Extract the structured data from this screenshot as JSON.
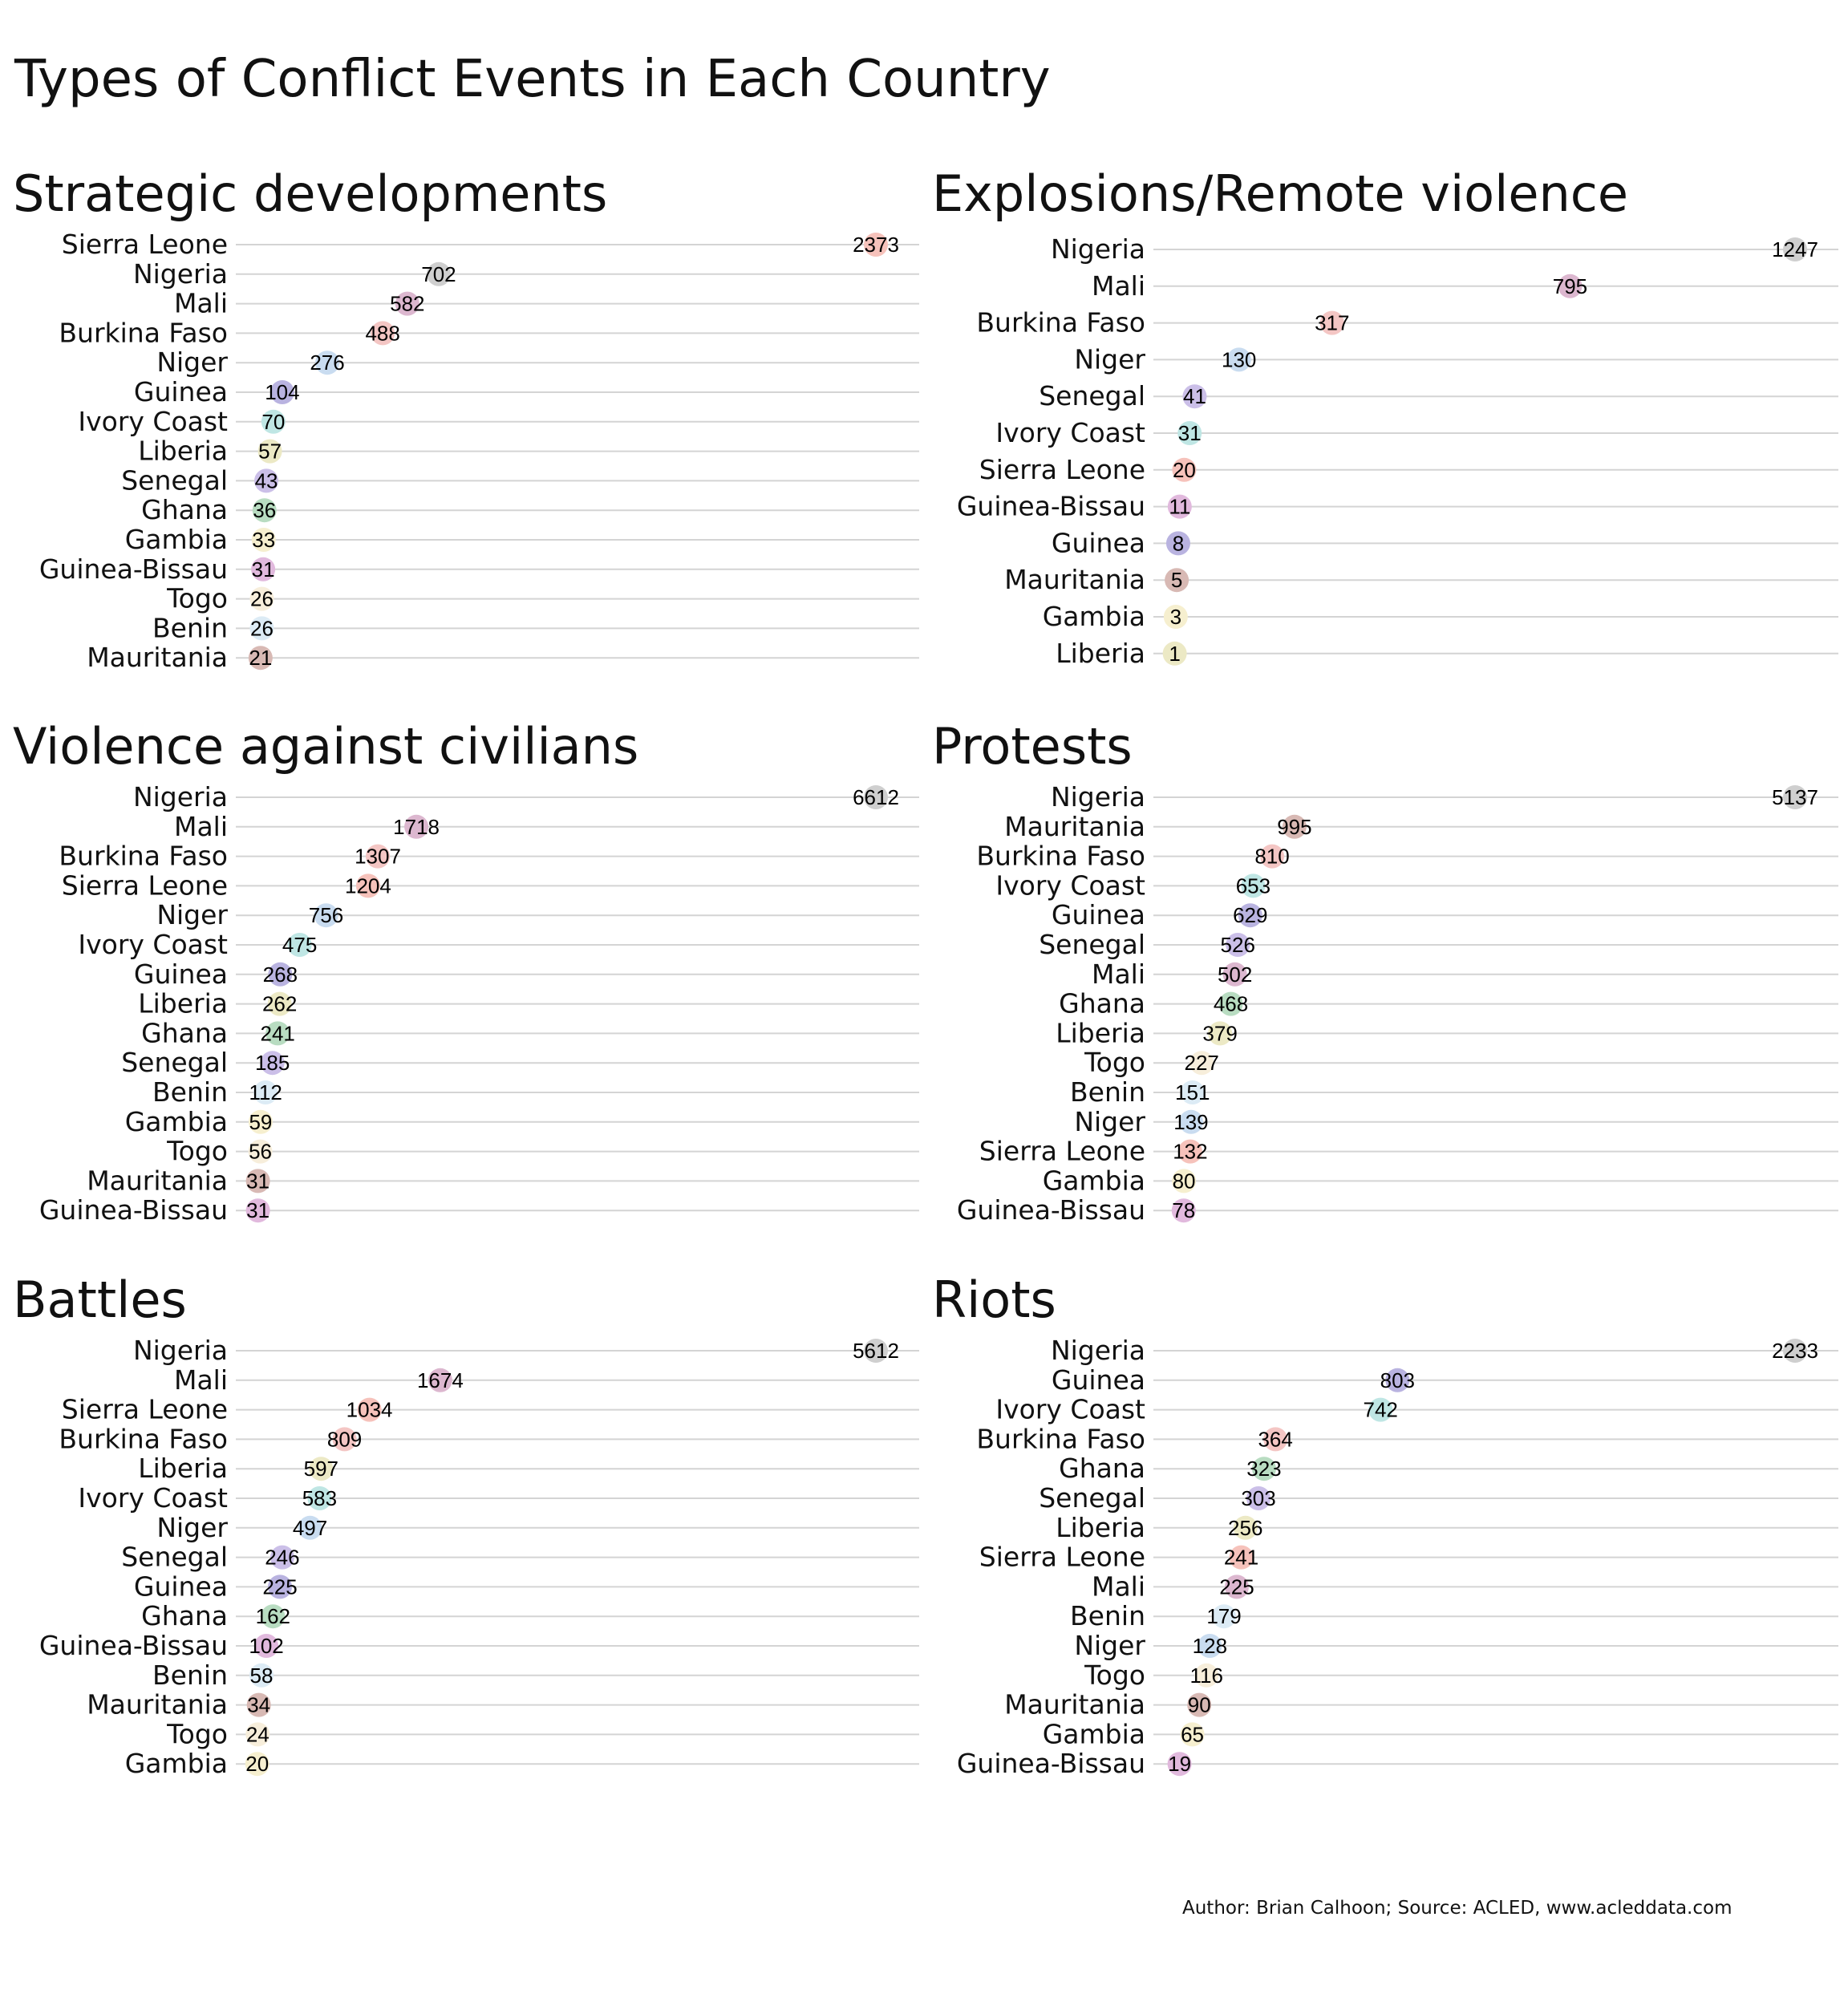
{
  "title": "Types of Conflict Events in Each Country",
  "caption": "Author: Brian Calhoon; Source: ACLED, www.acleddata.com",
  "country_colors": {
    "Sierra Leone": "#f6c2bb",
    "Nigeria": "#cfcfcf",
    "Mali": "#dcb7cf",
    "Burkina Faso": "#f4c6c4",
    "Niger": "#c9dcf0",
    "Guinea": "#b9b3e0",
    "Ivory Coast": "#bfe6e4",
    "Liberia": "#ece9c5",
    "Senegal": "#cbbfe8",
    "Ghana": "#b8dcc1",
    "Gambia": "#f6efcf",
    "Guinea-Bissau": "#e1b9dd",
    "Togo": "#f7eedb",
    "Benin": "#dcebf5",
    "Mauritania": "#d8b9b4"
  },
  "chart_data": [
    {
      "type": "scatter",
      "title": "Strategic developments",
      "categories": [
        "Sierra Leone",
        "Nigeria",
        "Mali",
        "Burkina Faso",
        "Niger",
        "Guinea",
        "Ivory Coast",
        "Liberia",
        "Senegal",
        "Ghana",
        "Gambia",
        "Guinea-Bissau",
        "Togo",
        "Benin",
        "Mauritania"
      ],
      "values": [
        2373,
        702,
        582,
        488,
        276,
        104,
        70,
        57,
        43,
        36,
        33,
        31,
        26,
        26,
        21
      ],
      "xlim": [
        0,
        2373
      ],
      "grid": true,
      "legend": "none"
    },
    {
      "type": "scatter",
      "title": "Explosions/Remote violence",
      "categories": [
        "Nigeria",
        "Mali",
        "Burkina Faso",
        "Niger",
        "Senegal",
        "Ivory Coast",
        "Sierra Leone",
        "Guinea-Bissau",
        "Guinea",
        "Mauritania",
        "Gambia",
        "Liberia"
      ],
      "values": [
        1247,
        795,
        317,
        130,
        41,
        31,
        20,
        11,
        8,
        5,
        3,
        1
      ],
      "xlim": [
        0,
        1247
      ],
      "grid": true,
      "legend": "none"
    },
    {
      "type": "scatter",
      "title": "Violence against civilians",
      "categories": [
        "Nigeria",
        "Mali",
        "Burkina Faso",
        "Sierra Leone",
        "Niger",
        "Ivory Coast",
        "Guinea",
        "Liberia",
        "Ghana",
        "Senegal",
        "Benin",
        "Gambia",
        "Togo",
        "Mauritania",
        "Guinea-Bissau"
      ],
      "values": [
        6612,
        1718,
        1307,
        1204,
        756,
        475,
        268,
        262,
        241,
        185,
        112,
        59,
        56,
        31,
        31
      ],
      "xlim": [
        0,
        6612
      ],
      "grid": true,
      "legend": "none"
    },
    {
      "type": "scatter",
      "title": "Protests",
      "categories": [
        "Nigeria",
        "Mauritania",
        "Burkina Faso",
        "Ivory Coast",
        "Guinea",
        "Senegal",
        "Mali",
        "Ghana",
        "Liberia",
        "Togo",
        "Benin",
        "Niger",
        "Sierra Leone",
        "Gambia",
        "Guinea-Bissau"
      ],
      "values": [
        5137,
        995,
        810,
        653,
        629,
        526,
        502,
        468,
        379,
        227,
        151,
        139,
        132,
        80,
        78
      ],
      "xlim": [
        0,
        5137
      ],
      "grid": true,
      "legend": "none"
    },
    {
      "type": "scatter",
      "title": "Battles",
      "categories": [
        "Nigeria",
        "Mali",
        "Sierra Leone",
        "Burkina Faso",
        "Liberia",
        "Ivory Coast",
        "Niger",
        "Senegal",
        "Guinea",
        "Ghana",
        "Guinea-Bissau",
        "Benin",
        "Mauritania",
        "Togo",
        "Gambia"
      ],
      "values": [
        5612,
        1674,
        1034,
        809,
        597,
        583,
        497,
        246,
        225,
        162,
        102,
        58,
        34,
        24,
        20
      ],
      "xlim": [
        0,
        5612
      ],
      "grid": true,
      "legend": "none"
    },
    {
      "type": "scatter",
      "title": "Riots",
      "categories": [
        "Nigeria",
        "Guinea",
        "Ivory Coast",
        "Burkina Faso",
        "Ghana",
        "Senegal",
        "Liberia",
        "Sierra Leone",
        "Mali",
        "Benin",
        "Niger",
        "Togo",
        "Mauritania",
        "Gambia",
        "Guinea-Bissau"
      ],
      "values": [
        2233,
        803,
        742,
        364,
        323,
        303,
        256,
        241,
        225,
        179,
        128,
        116,
        90,
        65,
        19
      ],
      "xlim": [
        0,
        2233
      ],
      "grid": true,
      "legend": "none"
    }
  ]
}
